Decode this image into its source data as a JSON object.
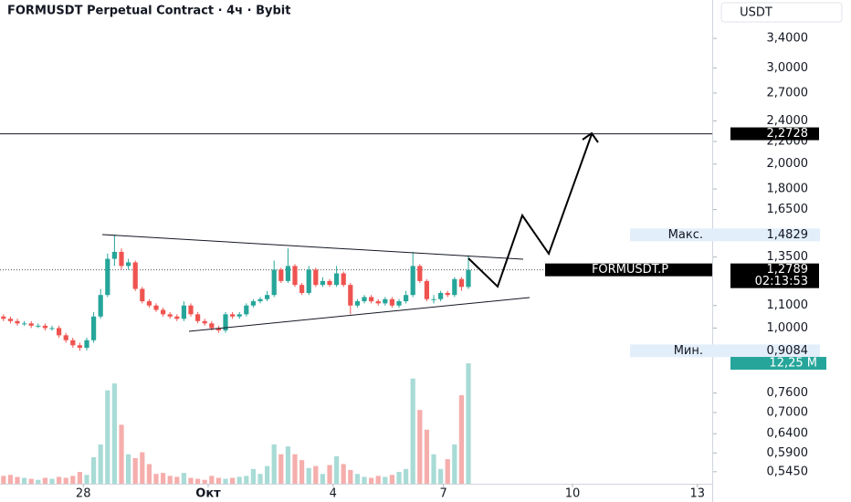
{
  "chart_data": {
    "type": "candlestick",
    "title": "FORMUSDT Perpetual Contract · 4ч · Bybit",
    "y_axis_unit": "USDT",
    "log_scale": true,
    "ylim": [
      0.518,
      4.0
    ],
    "yticks": [
      {
        "value": 3.4,
        "label": "3,4000"
      },
      {
        "value": 3.0,
        "label": "3,0000"
      },
      {
        "value": 2.7,
        "label": "2,7000"
      },
      {
        "value": 2.4,
        "label": "2,4000"
      },
      {
        "value": 2.2,
        "label": "2,2000"
      },
      {
        "value": 2.0,
        "label": "2,0000"
      },
      {
        "value": 1.8,
        "label": "1,8000"
      },
      {
        "value": 1.65,
        "label": "1,6500"
      },
      {
        "value": 1.35,
        "label": "1,3500"
      },
      {
        "value": 1.1,
        "label": "1,1000"
      },
      {
        "value": 1.0,
        "label": "1,0000"
      },
      {
        "value": 0.76,
        "label": "0,7600"
      },
      {
        "value": 0.7,
        "label": "0,7000"
      },
      {
        "value": 0.64,
        "label": "0,6400"
      },
      {
        "value": 0.59,
        "label": "0,5900"
      },
      {
        "value": 0.545,
        "label": "0,5450"
      }
    ],
    "xticks": [
      {
        "value": 12,
        "label": "28"
      },
      {
        "value": 30,
        "label": "Окт"
      },
      {
        "value": 48,
        "label": "4"
      },
      {
        "value": 63.9,
        "label": "7"
      },
      {
        "value": 82.5,
        "label": "10"
      },
      {
        "value": 100.5,
        "label": "13"
      }
    ],
    "up_color": "#26a69a",
    "down_color": "#ef5350",
    "open": [
      1.05,
      1.04,
      1.03,
      1.02,
      1.02,
      1.01,
      1.01,
      1.0,
      1.0,
      0.97,
      0.95,
      0.93,
      0.92,
      0.95,
      1.05,
      1.15,
      1.34,
      1.38,
      1.3,
      1.32,
      1.18,
      1.12,
      1.1,
      1.08,
      1.06,
      1.05,
      1.04,
      1.1,
      1.06,
      1.03,
      1.02,
      1.0,
      0.99,
      1.06,
      1.05,
      1.06,
      1.1,
      1.12,
      1.13,
      1.15,
      1.28,
      1.22,
      1.3,
      1.2,
      1.16,
      1.28,
      1.2,
      1.22,
      1.2,
      1.26,
      1.2,
      1.1,
      1.12,
      1.14,
      1.12,
      1.11,
      1.13,
      1.1,
      1.12,
      1.15,
      1.3,
      1.22,
      1.13,
      1.13,
      1.16,
      1.15,
      1.23,
      1.19
    ],
    "high": [
      1.06,
      1.05,
      1.04,
      1.03,
      1.03,
      1.02,
      1.02,
      1.01,
      1.01,
      0.98,
      0.96,
      0.94,
      0.96,
      1.07,
      1.18,
      1.37,
      1.4829,
      1.4,
      1.34,
      1.33,
      1.19,
      1.13,
      1.11,
      1.09,
      1.07,
      1.06,
      1.12,
      1.11,
      1.07,
      1.04,
      1.03,
      1.01,
      1.07,
      1.07,
      1.07,
      1.11,
      1.13,
      1.14,
      1.17,
      1.33,
      1.29,
      1.4,
      1.31,
      1.21,
      1.3,
      1.29,
      1.24,
      1.23,
      1.3,
      1.27,
      1.21,
      1.13,
      1.15,
      1.15,
      1.13,
      1.14,
      1.14,
      1.13,
      1.17,
      1.38,
      1.31,
      1.23,
      1.15,
      1.17,
      1.17,
      1.24,
      1.24,
      1.36
    ],
    "low": [
      1.03,
      1.02,
      1.01,
      1.01,
      1.0,
      1.0,
      0.99,
      0.99,
      0.96,
      0.94,
      0.92,
      0.9084,
      0.91,
      0.94,
      1.04,
      1.14,
      1.3,
      1.28,
      1.28,
      1.17,
      1.11,
      1.09,
      1.07,
      1.05,
      1.04,
      1.03,
      1.03,
      1.05,
      1.02,
      1.01,
      0.99,
      0.98,
      0.98,
      1.04,
      1.04,
      1.05,
      1.09,
      1.11,
      1.12,
      1.14,
      1.21,
      1.21,
      1.19,
      1.15,
      1.15,
      1.19,
      1.19,
      1.19,
      1.19,
      1.19,
      1.06,
      1.09,
      1.11,
      1.11,
      1.1,
      1.1,
      1.09,
      1.09,
      1.11,
      1.14,
      1.21,
      1.12,
      1.11,
      1.12,
      1.14,
      1.14,
      1.17,
      1.18
    ],
    "close": [
      1.04,
      1.03,
      1.02,
      1.02,
      1.01,
      1.01,
      1.0,
      1.0,
      0.97,
      0.95,
      0.93,
      0.92,
      0.95,
      1.05,
      1.15,
      1.34,
      1.38,
      1.3,
      1.32,
      1.18,
      1.12,
      1.1,
      1.08,
      1.06,
      1.05,
      1.04,
      1.1,
      1.06,
      1.03,
      1.02,
      1.0,
      0.99,
      1.06,
      1.05,
      1.06,
      1.1,
      1.12,
      1.13,
      1.15,
      1.28,
      1.22,
      1.3,
      1.2,
      1.16,
      1.28,
      1.2,
      1.22,
      1.2,
      1.26,
      1.2,
      1.1,
      1.12,
      1.14,
      1.12,
      1.11,
      1.13,
      1.1,
      1.12,
      1.15,
      1.3,
      1.22,
      1.13,
      1.13,
      1.16,
      1.15,
      1.23,
      1.19,
      1.2789
    ],
    "volume": {
      "ylim": [
        0,
        49.2
      ],
      "up_color": "#a8dbd6",
      "down_color": "#f5aeac",
      "values": [
        0.8,
        0.9,
        0.7,
        0.6,
        0.5,
        0.4,
        0.6,
        0.5,
        0.7,
        0.6,
        0.8,
        1.2,
        0.9,
        2.7,
        4.0,
        9.5,
        10.2,
        6.0,
        3.0,
        2.6,
        3.2,
        2.0,
        1.0,
        1.1,
        0.8,
        0.7,
        1.1,
        0.6,
        0.5,
        0.4,
        0.8,
        0.6,
        0.5,
        0.6,
        0.7,
        0.8,
        1.5,
        1.0,
        1.8,
        4.0,
        3.0,
        3.8,
        3.0,
        2.4,
        1.6,
        1.8,
        1.0,
        1.9,
        2.8,
        2.0,
        1.4,
        1.0,
        0.7,
        0.6,
        0.8,
        0.7,
        0.9,
        1.2,
        1.5,
        10.7,
        7.5,
        5.5,
        3.0,
        1.5,
        2.5,
        4.0,
        9.0,
        12.25
      ],
      "value_labels": [
        null,
        null,
        null,
        null,
        null,
        null,
        null,
        null,
        null,
        null,
        null,
        null,
        null,
        null,
        null,
        null,
        null,
        null,
        null,
        null,
        null,
        null,
        null,
        null,
        null,
        null,
        null,
        null,
        null,
        null,
        null,
        null,
        null,
        null,
        null,
        null,
        null,
        null,
        null,
        null,
        null,
        null,
        null,
        null,
        null,
        null,
        null,
        null,
        null,
        null,
        null,
        null,
        null,
        null,
        null,
        null,
        null,
        null,
        null,
        null,
        null,
        null,
        null,
        null,
        null,
        null,
        null,
        "12,25 M"
      ]
    },
    "level_line": {
      "value": 2.2728,
      "label": "2,2728"
    },
    "high_tag": {
      "text": "Макс.",
      "value": 1.4829,
      "label": "1,4829"
    },
    "low_tag": {
      "text": "Мин.",
      "value": 0.9084,
      "label": "0,9084"
    },
    "last_price": {
      "symbol": "FORMUSDT.P",
      "value": 1.2789,
      "label": "1,2789",
      "countdown": "02:13:53"
    }
  }
}
